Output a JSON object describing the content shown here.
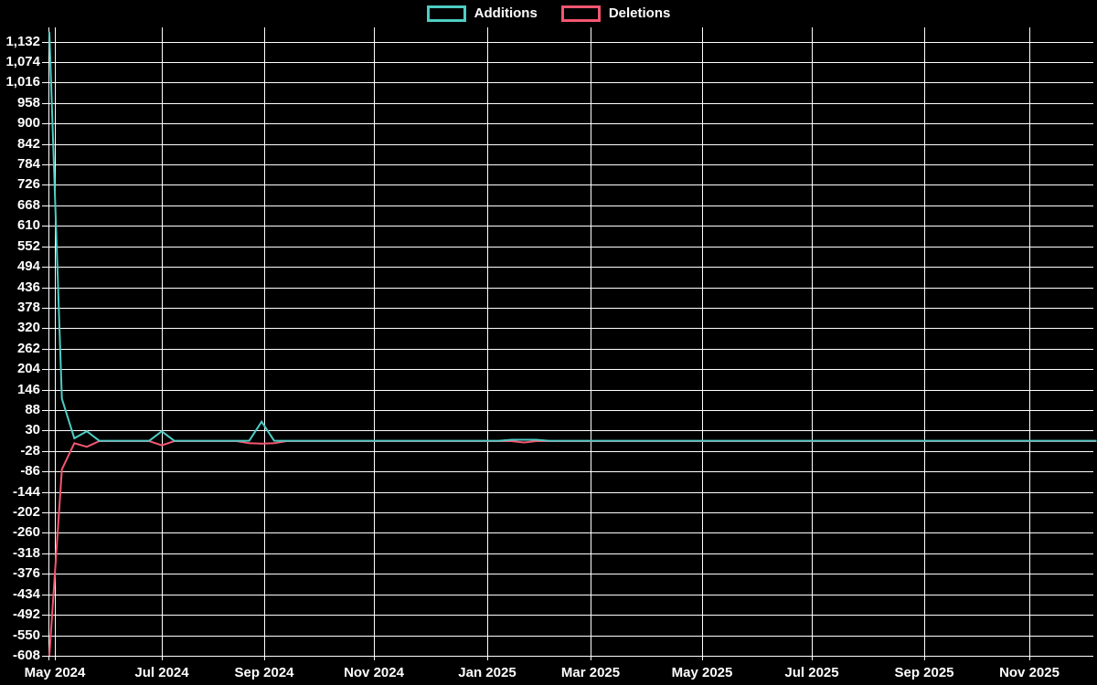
{
  "chart_data": {
    "type": "line",
    "title": "",
    "background_color": "#000000",
    "grid_color": "#ffffff",
    "axis_color": "#ffffff",
    "grid": true,
    "legend_position": "top-center",
    "legend": [
      {
        "label": "Additions",
        "color": "#4ecdc4"
      },
      {
        "label": "Deletions",
        "color": "#f45670"
      }
    ],
    "xlabel": "",
    "ylabel": "",
    "ylim": [
      -608,
      1160
    ],
    "y_tick_step": 58,
    "y_ticks": [
      {
        "label": "1,132",
        "value": 1132
      },
      {
        "label": "1,074",
        "value": 1074
      },
      {
        "label": "1,016",
        "value": 1016
      },
      {
        "label": "958",
        "value": 958
      },
      {
        "label": "900",
        "value": 900
      },
      {
        "label": "842",
        "value": 842
      },
      {
        "label": "784",
        "value": 784
      },
      {
        "label": "726",
        "value": 726
      },
      {
        "label": "668",
        "value": 668
      },
      {
        "label": "610",
        "value": 610
      },
      {
        "label": "552",
        "value": 552
      },
      {
        "label": "494",
        "value": 494
      },
      {
        "label": "436",
        "value": 436
      },
      {
        "label": "378",
        "value": 378
      },
      {
        "label": "320",
        "value": 320
      },
      {
        "label": "262",
        "value": 262
      },
      {
        "label": "204",
        "value": 204
      },
      {
        "label": "146",
        "value": 146
      },
      {
        "label": "88",
        "value": 88
      },
      {
        "label": "30",
        "value": 30
      },
      {
        "label": "-28",
        "value": -28
      },
      {
        "label": "-86",
        "value": -86
      },
      {
        "label": "-144",
        "value": -144
      },
      {
        "label": "-202",
        "value": -202
      },
      {
        "label": "-260",
        "value": -260
      },
      {
        "label": "-318",
        "value": -318
      },
      {
        "label": "-376",
        "value": -376
      },
      {
        "label": "-434",
        "value": -434
      },
      {
        "label": "-492",
        "value": -492
      },
      {
        "label": "-550",
        "value": -550
      },
      {
        "label": "-608",
        "value": -608
      }
    ],
    "x_ticks": [
      {
        "label": "May 2024"
      },
      {
        "label": "Jul 2024"
      },
      {
        "label": "Sep 2024"
      },
      {
        "label": "Nov 2024"
      },
      {
        "label": "Jan 2025"
      },
      {
        "label": "Mar 2025"
      },
      {
        "label": "May 2025"
      },
      {
        "label": "Jul 2025"
      },
      {
        "label": "Sep 2025"
      },
      {
        "label": "Nov 2025"
      }
    ],
    "x_unit": "days_since_2024-05-01",
    "series": [
      {
        "name": "Additions",
        "color": "#4ecdc4",
        "points": [
          [
            -3,
            1160
          ],
          [
            4,
            120
          ],
          [
            11,
            8
          ],
          [
            18,
            28
          ],
          [
            25,
            1
          ],
          [
            53,
            1
          ],
          [
            60,
            28
          ],
          [
            67,
            1
          ],
          [
            109,
            1
          ],
          [
            116,
            55
          ],
          [
            123,
            1
          ],
          [
            249,
            1
          ],
          [
            256,
            4
          ],
          [
            270,
            4
          ],
          [
            277,
            1
          ],
          [
            584,
            1
          ]
        ]
      },
      {
        "name": "Deletions",
        "color": "#f45670",
        "points": [
          [
            -3,
            -608
          ],
          [
            4,
            -80
          ],
          [
            11,
            -6
          ],
          [
            18,
            -16
          ],
          [
            25,
            0
          ],
          [
            53,
            0
          ],
          [
            60,
            -12
          ],
          [
            67,
            0
          ],
          [
            102,
            0
          ],
          [
            109,
            -6
          ],
          [
            116,
            -7
          ],
          [
            123,
            -6
          ],
          [
            130,
            0
          ],
          [
            256,
            0
          ],
          [
            263,
            -4
          ],
          [
            270,
            0
          ],
          [
            584,
            0
          ]
        ]
      }
    ]
  }
}
